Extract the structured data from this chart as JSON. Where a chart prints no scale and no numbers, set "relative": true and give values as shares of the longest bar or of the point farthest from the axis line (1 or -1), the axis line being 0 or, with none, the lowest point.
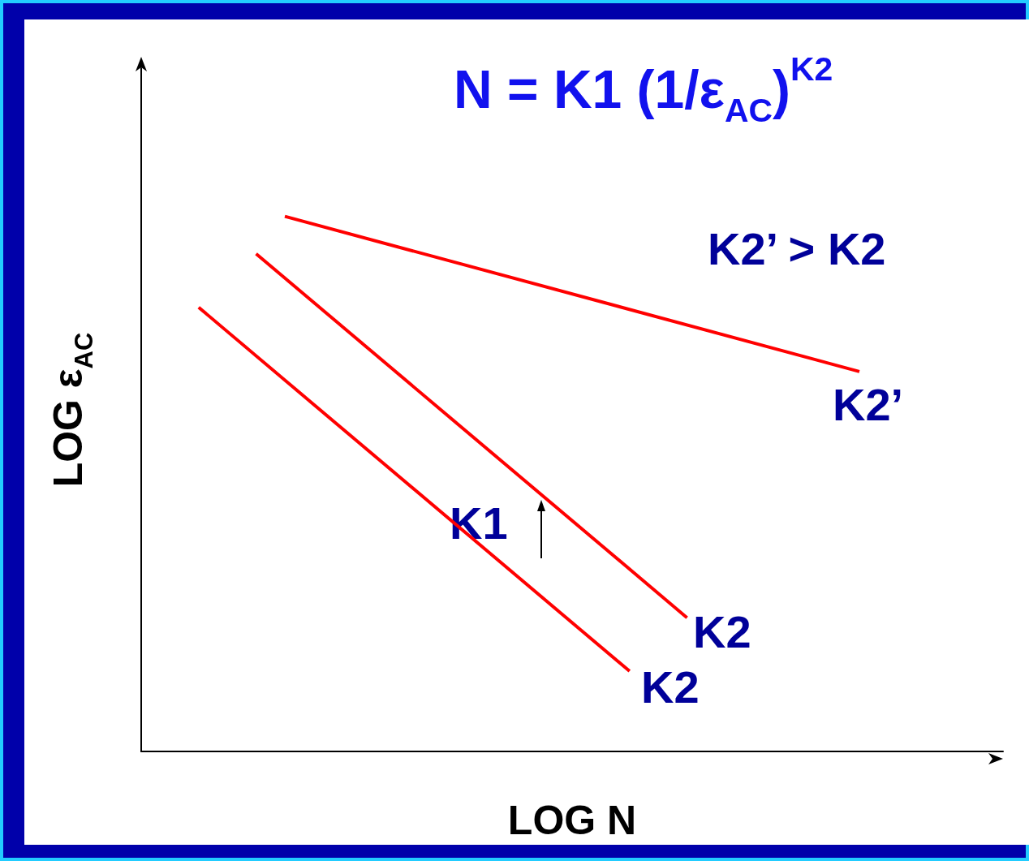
{
  "chart_data": {
    "type": "line",
    "relative": true,
    "title": "N = K1 (1/ε$_{AC}$)$^{K2}$",
    "xlabel": "LOG N",
    "ylabel": "LOG ε$_{AC}$",
    "line_style": "solid",
    "marker": "none",
    "categories": [
      null,
      null,
      null,
      null,
      null,
      null,
      null,
      null,
      null,
      null,
      null,
      null,
      null,
      null,
      null,
      null,
      null,
      null,
      null,
      null,
      null,
      null,
      null,
      null,
      null,
      null,
      null,
      null,
      null,
      null,
      null
    ],
    "series": [
      {
        "color": "#ff0000",
        "values": [
          null,
          null,
          null,
          null,
          null,
          1,
          null,
          null,
          null,
          null,
          null,
          null,
          null,
          null,
          null,
          null,
          null,
          null,
          null,
          null,
          null,
          null,
          null,
          null,
          null,
          0.71,
          null,
          null,
          null,
          null,
          null
        ]
      },
      {
        "color": "#ff0000",
        "values": [
          null,
          null,
          null,
          null,
          0.93,
          null,
          null,
          null,
          null,
          null,
          null,
          null,
          null,
          null,
          null,
          null,
          null,
          null,
          null,
          0.25,
          null,
          null,
          null,
          null,
          null,
          null,
          null,
          null,
          null,
          null,
          null
        ]
      },
      {
        "color": "#ff0000",
        "values": [
          null,
          null,
          0.83,
          null,
          null,
          null,
          null,
          null,
          null,
          null,
          null,
          null,
          null,
          null,
          null,
          null,
          null,
          0.15,
          null,
          null,
          null,
          null,
          null,
          null,
          null,
          null,
          null,
          null,
          null,
          null,
          null
        ]
      }
    ],
    "annotations": [
      "K2’ > K2",
      "K2’",
      "K2",
      "K2",
      "K1"
    ]
  }
}
